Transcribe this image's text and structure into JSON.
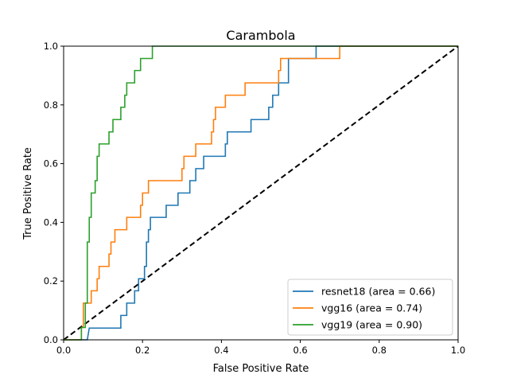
{
  "chart_data": {
    "type": "line",
    "title": "Carambola",
    "xlabel": "False Positive Rate",
    "ylabel": "True Positive Rate",
    "xlim": [
      0,
      1
    ],
    "ylim": [
      0,
      1
    ],
    "xticks": [
      "0.0",
      "0.2",
      "0.4",
      "0.6",
      "0.8",
      "1.0"
    ],
    "yticks": [
      "0.0",
      "0.2",
      "0.4",
      "0.6",
      "0.8",
      "1.0"
    ],
    "legend_position": "lower-right",
    "grid": false,
    "series": [
      {
        "name": "resnet18 (area = 0.66)",
        "color": "#1f77b4",
        "points": [
          [
            0,
            0
          ],
          [
            0.06,
            0
          ],
          [
            0.065,
            0.04
          ],
          [
            0.145,
            0.04
          ],
          [
            0.145,
            0.083
          ],
          [
            0.16,
            0.083
          ],
          [
            0.16,
            0.125
          ],
          [
            0.18,
            0.125
          ],
          [
            0.18,
            0.167
          ],
          [
            0.19,
            0.167
          ],
          [
            0.19,
            0.208
          ],
          [
            0.205,
            0.208
          ],
          [
            0.205,
            0.25
          ],
          [
            0.21,
            0.25
          ],
          [
            0.21,
            0.333
          ],
          [
            0.215,
            0.333
          ],
          [
            0.215,
            0.375
          ],
          [
            0.22,
            0.375
          ],
          [
            0.22,
            0.417
          ],
          [
            0.26,
            0.417
          ],
          [
            0.26,
            0.458
          ],
          [
            0.29,
            0.458
          ],
          [
            0.29,
            0.5
          ],
          [
            0.32,
            0.5
          ],
          [
            0.32,
            0.542
          ],
          [
            0.335,
            0.542
          ],
          [
            0.335,
            0.583
          ],
          [
            0.355,
            0.583
          ],
          [
            0.355,
            0.625
          ],
          [
            0.41,
            0.625
          ],
          [
            0.41,
            0.667
          ],
          [
            0.415,
            0.667
          ],
          [
            0.415,
            0.708
          ],
          [
            0.475,
            0.708
          ],
          [
            0.475,
            0.75
          ],
          [
            0.52,
            0.75
          ],
          [
            0.52,
            0.792
          ],
          [
            0.53,
            0.792
          ],
          [
            0.53,
            0.833
          ],
          [
            0.545,
            0.833
          ],
          [
            0.545,
            0.875
          ],
          [
            0.57,
            0.875
          ],
          [
            0.57,
            0.917
          ],
          [
            0.57,
            0.958
          ],
          [
            0.64,
            0.958
          ],
          [
            0.64,
            1
          ],
          [
            1,
            1
          ]
        ]
      },
      {
        "name": "vgg16 (area = 0.74)",
        "color": "#ff7f0e",
        "points": [
          [
            0,
            0
          ],
          [
            0.045,
            0
          ],
          [
            0.045,
            0.042
          ],
          [
            0.05,
            0.042
          ],
          [
            0.05,
            0.083
          ],
          [
            0.05,
            0.125
          ],
          [
            0.07,
            0.125
          ],
          [
            0.07,
            0.167
          ],
          [
            0.085,
            0.167
          ],
          [
            0.085,
            0.208
          ],
          [
            0.09,
            0.208
          ],
          [
            0.09,
            0.25
          ],
          [
            0.115,
            0.25
          ],
          [
            0.115,
            0.292
          ],
          [
            0.12,
            0.292
          ],
          [
            0.12,
            0.333
          ],
          [
            0.13,
            0.333
          ],
          [
            0.13,
            0.375
          ],
          [
            0.16,
            0.375
          ],
          [
            0.16,
            0.417
          ],
          [
            0.195,
            0.417
          ],
          [
            0.195,
            0.458
          ],
          [
            0.2,
            0.458
          ],
          [
            0.2,
            0.5
          ],
          [
            0.215,
            0.5
          ],
          [
            0.215,
            0.542
          ],
          [
            0.3,
            0.542
          ],
          [
            0.3,
            0.583
          ],
          [
            0.305,
            0.583
          ],
          [
            0.305,
            0.625
          ],
          [
            0.335,
            0.625
          ],
          [
            0.335,
            0.667
          ],
          [
            0.375,
            0.667
          ],
          [
            0.375,
            0.708
          ],
          [
            0.38,
            0.708
          ],
          [
            0.38,
            0.75
          ],
          [
            0.385,
            0.75
          ],
          [
            0.385,
            0.792
          ],
          [
            0.41,
            0.792
          ],
          [
            0.41,
            0.833
          ],
          [
            0.46,
            0.833
          ],
          [
            0.46,
            0.875
          ],
          [
            0.545,
            0.875
          ],
          [
            0.545,
            0.917
          ],
          [
            0.55,
            0.917
          ],
          [
            0.55,
            0.958
          ],
          [
            0.7,
            0.958
          ],
          [
            0.7,
            1
          ],
          [
            1,
            1
          ]
        ]
      },
      {
        "name": "vgg19 (area = 0.90)",
        "color": "#2ca02c",
        "points": [
          [
            0,
            0
          ],
          [
            0.045,
            0
          ],
          [
            0.045,
            0.042
          ],
          [
            0.055,
            0.042
          ],
          [
            0.055,
            0.125
          ],
          [
            0.06,
            0.125
          ],
          [
            0.06,
            0.167
          ],
          [
            0.06,
            0.208
          ],
          [
            0.06,
            0.25
          ],
          [
            0.06,
            0.292
          ],
          [
            0.06,
            0.333
          ],
          [
            0.065,
            0.333
          ],
          [
            0.065,
            0.375
          ],
          [
            0.065,
            0.417
          ],
          [
            0.07,
            0.417
          ],
          [
            0.07,
            0.458
          ],
          [
            0.07,
            0.5
          ],
          [
            0.08,
            0.5
          ],
          [
            0.08,
            0.542
          ],
          [
            0.085,
            0.542
          ],
          [
            0.085,
            0.583
          ],
          [
            0.085,
            0.625
          ],
          [
            0.09,
            0.625
          ],
          [
            0.09,
            0.667
          ],
          [
            0.115,
            0.667
          ],
          [
            0.115,
            0.708
          ],
          [
            0.125,
            0.708
          ],
          [
            0.125,
            0.75
          ],
          [
            0.145,
            0.75
          ],
          [
            0.145,
            0.792
          ],
          [
            0.155,
            0.792
          ],
          [
            0.155,
            0.833
          ],
          [
            0.16,
            0.833
          ],
          [
            0.16,
            0.875
          ],
          [
            0.18,
            0.875
          ],
          [
            0.18,
            0.917
          ],
          [
            0.195,
            0.917
          ],
          [
            0.195,
            0.958
          ],
          [
            0.225,
            0.958
          ],
          [
            0.225,
            1
          ],
          [
            1,
            1
          ]
        ]
      }
    ],
    "reference_line": {
      "style": "dashed",
      "color": "#000000",
      "points": [
        [
          0,
          0
        ],
        [
          1,
          1
        ]
      ]
    }
  }
}
